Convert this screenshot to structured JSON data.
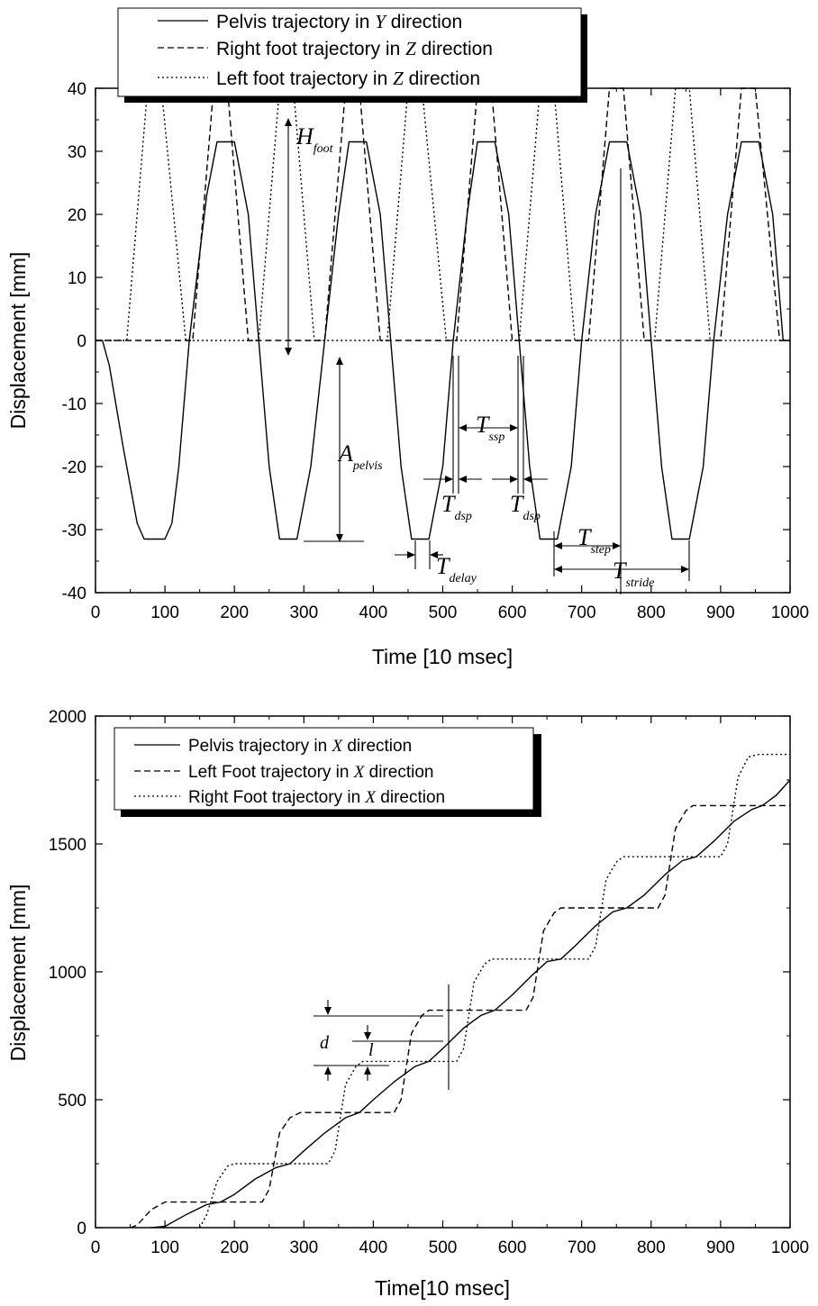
{
  "chart_data": [
    {
      "type": "line",
      "xlabel": "Time [10 msec]",
      "ylabel": "Displacement [mm]",
      "xlim": [
        0,
        1000
      ],
      "ylim": [
        -40,
        40
      ],
      "x_ticks": [
        "0",
        "100",
        "200",
        "300",
        "400",
        "500",
        "600",
        "700",
        "800",
        "900",
        "1000"
      ],
      "y_ticks": [
        "-40",
        "-30",
        "-20",
        "-10",
        "0",
        "10",
        "20",
        "30",
        "40"
      ],
      "legend": [
        {
          "pre": "Pelvis trajectory in ",
          "var": "Y",
          "post": " direction",
          "style": "solid"
        },
        {
          "pre": "Right foot trajectory in ",
          "var": "Z",
          "post": " direction",
          "style": "dashed"
        },
        {
          "pre": "Left foot trajectory in ",
          "var": "Z",
          "post": " direction",
          "style": "dotted"
        }
      ],
      "legend_position": "top-left",
      "annotations": [
        {
          "main": "H",
          "sub": "foot"
        },
        {
          "main": "A",
          "sub": "pelvis"
        },
        {
          "main": "T",
          "sub": "ssp"
        },
        {
          "main": "T",
          "sub": "dsp"
        },
        {
          "main": "T",
          "sub": "dsp"
        },
        {
          "main": "T",
          "sub": "delay"
        },
        {
          "main": "T",
          "sub": "step"
        },
        {
          "main": "T",
          "sub": "stride"
        }
      ],
      "series": [
        {
          "name": "Pelvis trajectory in Y direction",
          "style": "solid",
          "points": [
            [
              0,
              0
            ],
            [
              10,
              0
            ],
            [
              20,
              -4
            ],
            [
              40,
              -17
            ],
            [
              60,
              -29
            ],
            [
              70,
              -31.5
            ],
            [
              100,
              -31.5
            ],
            [
              110,
              -29
            ],
            [
              120,
              -20
            ],
            [
              135,
              0
            ],
            [
              160,
              23
            ],
            [
              175,
              31.5
            ],
            [
              200,
              31.5
            ],
            [
              220,
              20
            ],
            [
              235,
              0
            ],
            [
              250,
              -20
            ],
            [
              265,
              -31.5
            ],
            [
              290,
              -31.5
            ],
            [
              310,
              -20
            ],
            [
              330,
              0
            ],
            [
              350,
              20
            ],
            [
              365,
              31.5
            ],
            [
              390,
              31.5
            ],
            [
              410,
              20
            ],
            [
              425,
              0
            ],
            [
              440,
              -20
            ],
            [
              455,
              -31.5
            ],
            [
              480,
              -31.5
            ],
            [
              500,
              -20
            ],
            [
              515,
              0
            ],
            [
              535,
              20
            ],
            [
              550,
              31.5
            ],
            [
              575,
              31.5
            ],
            [
              595,
              20
            ],
            [
              610,
              0
            ],
            [
              625,
              -20
            ],
            [
              640,
              -31.5
            ],
            [
              665,
              -31.5
            ],
            [
              685,
              -20
            ],
            [
              700,
              0
            ],
            [
              720,
              20
            ],
            [
              740,
              31.5
            ],
            [
              765,
              31.5
            ],
            [
              785,
              20
            ],
            [
              800,
              0
            ],
            [
              815,
              -20
            ],
            [
              830,
              -31.5
            ],
            [
              855,
              -31.5
            ],
            [
              875,
              -20
            ],
            [
              890,
              0
            ],
            [
              910,
              20
            ],
            [
              930,
              31.5
            ],
            [
              955,
              31.5
            ],
            [
              975,
              20
            ],
            [
              990,
              0
            ],
            [
              1000,
              0
            ]
          ]
        },
        {
          "name": "Right foot trajectory in Z direction",
          "style": "dashed",
          "points": [
            [
              0,
              0
            ],
            [
              140,
              0
            ],
            [
              170,
              40
            ],
            [
              190,
              40
            ],
            [
              220,
              0
            ],
            [
              330,
              0
            ],
            [
              360,
              40
            ],
            [
              380,
              40
            ],
            [
              410,
              0
            ],
            [
              520,
              0
            ],
            [
              550,
              40
            ],
            [
              570,
              40
            ],
            [
              600,
              0
            ],
            [
              710,
              0
            ],
            [
              740,
              40
            ],
            [
              760,
              40
            ],
            [
              790,
              0
            ],
            [
              900,
              0
            ],
            [
              930,
              40
            ],
            [
              950,
              40
            ],
            [
              985,
              0
            ],
            [
              1000,
              0
            ]
          ]
        },
        {
          "name": "Left foot trajectory in Z direction",
          "style": "dotted",
          "points": [
            [
              0,
              0
            ],
            [
              45,
              0
            ],
            [
              75,
              40
            ],
            [
              95,
              40
            ],
            [
              130,
              0
            ],
            [
              235,
              0
            ],
            [
              265,
              40
            ],
            [
              285,
              40
            ],
            [
              315,
              0
            ],
            [
              420,
              0
            ],
            [
              450,
              40
            ],
            [
              470,
              40
            ],
            [
              505,
              0
            ],
            [
              610,
              0
            ],
            [
              640,
              40
            ],
            [
              660,
              40
            ],
            [
              690,
              0
            ],
            [
              805,
              0
            ],
            [
              835,
              40
            ],
            [
              855,
              40
            ],
            [
              885,
              0
            ],
            [
              1000,
              0
            ]
          ]
        }
      ]
    },
    {
      "type": "line",
      "xlabel": "Time[10 msec]",
      "ylabel": "Displacement [mm]",
      "xlim": [
        0,
        1000
      ],
      "ylim": [
        0,
        2000
      ],
      "x_ticks": [
        "0",
        "100",
        "200",
        "300",
        "400",
        "500",
        "600",
        "700",
        "800",
        "900",
        "1000"
      ],
      "y_ticks": [
        "0",
        "500",
        "1000",
        "1500",
        "2000"
      ],
      "legend": [
        {
          "pre": "Pelvis trajectory in ",
          "var": "X",
          "post": " direction",
          "style": "solid"
        },
        {
          "pre": "Left Foot trajectory in ",
          "var": "X",
          "post": " direction",
          "style": "dashed"
        },
        {
          "pre": "Right Foot trajectory in ",
          "var": "X",
          "post": " direction",
          "style": "dotted"
        }
      ],
      "legend_position": "top-left",
      "annotations": [
        {
          "main": "d",
          "sub": ""
        },
        {
          "main": "l",
          "sub": ""
        }
      ],
      "series": [
        {
          "name": "Pelvis trajectory in X direction",
          "style": "solid",
          "points": [
            [
              80,
              0
            ],
            [
              100,
              5
            ],
            [
              130,
              50
            ],
            [
              160,
              90
            ],
            [
              180,
              100
            ],
            [
              200,
              130
            ],
            [
              230,
              190
            ],
            [
              260,
              235
            ],
            [
              280,
              250
            ],
            [
              300,
              300
            ],
            [
              330,
              370
            ],
            [
              360,
              430
            ],
            [
              380,
              450
            ],
            [
              400,
              500
            ],
            [
              430,
              570
            ],
            [
              460,
              630
            ],
            [
              480,
              650
            ],
            [
              500,
              700
            ],
            [
              530,
              780
            ],
            [
              555,
              830
            ],
            [
              575,
              850
            ],
            [
              600,
              910
            ],
            [
              630,
              990
            ],
            [
              650,
              1040
            ],
            [
              670,
              1050
            ],
            [
              690,
              1100
            ],
            [
              720,
              1180
            ],
            [
              745,
              1235
            ],
            [
              765,
              1250
            ],
            [
              790,
              1300
            ],
            [
              820,
              1380
            ],
            [
              845,
              1435
            ],
            [
              865,
              1450
            ],
            [
              890,
              1510
            ],
            [
              920,
              1590
            ],
            [
              945,
              1635
            ],
            [
              960,
              1650
            ],
            [
              980,
              1690
            ],
            [
              1000,
              1750
            ]
          ]
        },
        {
          "name": "Left Foot trajectory in X direction",
          "style": "dashed",
          "points": [
            [
              50,
              0
            ],
            [
              60,
              10
            ],
            [
              80,
              70
            ],
            [
              100,
              100
            ],
            [
              240,
              100
            ],
            [
              250,
              150
            ],
            [
              265,
              370
            ],
            [
              280,
              430
            ],
            [
              295,
              450
            ],
            [
              430,
              450
            ],
            [
              440,
              500
            ],
            [
              455,
              760
            ],
            [
              470,
              830
            ],
            [
              480,
              850
            ],
            [
              620,
              850
            ],
            [
              630,
              900
            ],
            [
              645,
              1160
            ],
            [
              660,
              1230
            ],
            [
              670,
              1250
            ],
            [
              810,
              1250
            ],
            [
              820,
              1300
            ],
            [
              835,
              1560
            ],
            [
              850,
              1630
            ],
            [
              860,
              1650
            ],
            [
              1000,
              1650
            ]
          ]
        },
        {
          "name": "Right Foot trajectory in X direction",
          "style": "dotted",
          "points": [
            [
              150,
              0
            ],
            [
              160,
              50
            ],
            [
              175,
              180
            ],
            [
              190,
              240
            ],
            [
              200,
              250
            ],
            [
              335,
              250
            ],
            [
              345,
              300
            ],
            [
              360,
              560
            ],
            [
              375,
              630
            ],
            [
              385,
              650
            ],
            [
              520,
              650
            ],
            [
              530,
              700
            ],
            [
              545,
              960
            ],
            [
              560,
              1030
            ],
            [
              570,
              1050
            ],
            [
              710,
              1050
            ],
            [
              720,
              1100
            ],
            [
              735,
              1360
            ],
            [
              750,
              1430
            ],
            [
              760,
              1450
            ],
            [
              900,
              1450
            ],
            [
              910,
              1500
            ],
            [
              925,
              1760
            ],
            [
              940,
              1840
            ],
            [
              955,
              1850
            ],
            [
              1000,
              1850
            ]
          ]
        }
      ]
    }
  ]
}
